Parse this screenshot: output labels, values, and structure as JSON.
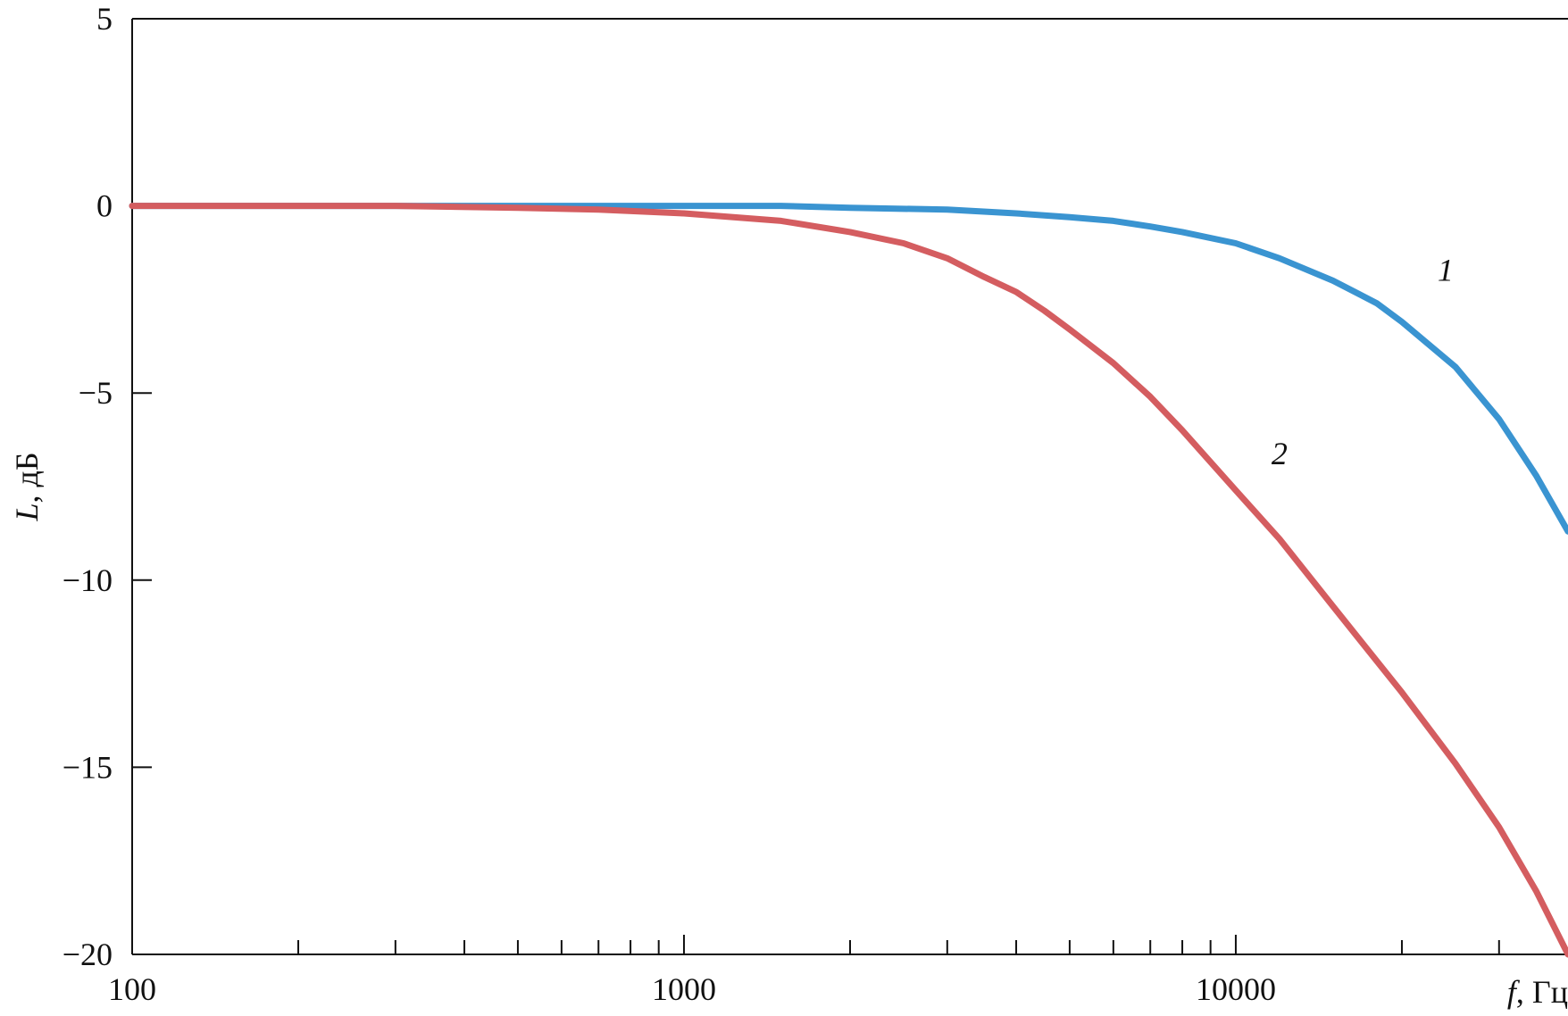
{
  "chart_data": {
    "type": "line",
    "x_scale": "log",
    "xlim": [
      100,
      40000
    ],
    "ylim": [
      -20,
      5
    ],
    "x_ticks": [
      100,
      1000,
      10000
    ],
    "x_tick_labels": [
      "100",
      "1000",
      "10000"
    ],
    "x_minor_ticks": [
      200,
      300,
      400,
      500,
      600,
      700,
      800,
      900,
      2000,
      3000,
      4000,
      5000,
      6000,
      7000,
      8000,
      9000,
      20000,
      30000
    ],
    "y_ticks": [
      5,
      0,
      -5,
      -10,
      -15,
      -20
    ],
    "y_tick_labels": [
      "5",
      "0",
      "−5",
      "−10",
      "−15",
      "−20"
    ],
    "xlabel": {
      "var": "f",
      "unit": ", Гц"
    },
    "ylabel": {
      "var": "L",
      "unit": ", дБ"
    },
    "grid": false,
    "series": [
      {
        "name": "1",
        "color": "#3a94d1",
        "x": [
          100,
          500,
          1000,
          1500,
          2000,
          3000,
          4000,
          5000,
          6000,
          7000,
          8000,
          10000,
          12000,
          15000,
          18000,
          20000,
          25000,
          30000,
          35000,
          40000
        ],
        "y": [
          0,
          0,
          0,
          0,
          -0.05,
          -0.1,
          -0.2,
          -0.3,
          -0.4,
          -0.55,
          -0.7,
          -1.0,
          -1.4,
          -2.0,
          -2.6,
          -3.1,
          -4.3,
          -5.7,
          -7.2,
          -8.7
        ]
      },
      {
        "name": "2",
        "color": "#d45d60",
        "x": [
          100,
          300,
          500,
          700,
          1000,
          1500,
          2000,
          2500,
          3000,
          3500,
          4000,
          4500,
          5000,
          6000,
          7000,
          8000,
          10000,
          12000,
          15000,
          20000,
          25000,
          30000,
          35000,
          40000
        ],
        "y": [
          0,
          0,
          -0.05,
          -0.1,
          -0.2,
          -0.4,
          -0.7,
          -1.0,
          -1.4,
          -1.9,
          -2.3,
          -2.8,
          -3.3,
          -4.2,
          -5.1,
          -6.0,
          -7.6,
          -8.9,
          -10.7,
          -13.0,
          -14.9,
          -16.6,
          -18.3,
          -20.0
        ]
      }
    ],
    "series_labels": [
      {
        "text": "1",
        "x": 24000,
        "y": -2.0
      },
      {
        "text": "2",
        "x": 12000,
        "y": -6.9
      }
    ]
  }
}
